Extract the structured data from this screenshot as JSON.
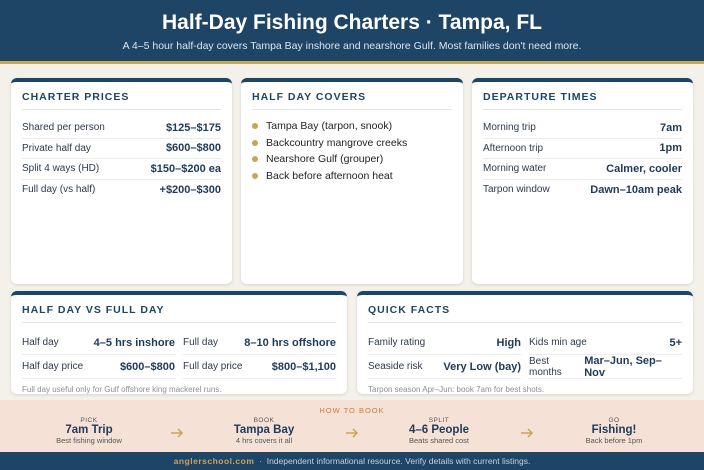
{
  "header": {
    "title": "Half-Day Fishing Charters · Tampa, FL",
    "subtitle": "A 4–5 hour half-day covers Tampa Bay inshore and nearshore Gulf. Most families don't need more."
  },
  "charter_prices": {
    "title": "CHARTER PRICES",
    "rows": [
      [
        "Shared per person",
        "$125–$175"
      ],
      [
        "Private half day",
        "$600–$800"
      ],
      [
        "Split 4 ways (HD)",
        "$150–$200 ea"
      ],
      [
        "Full day (vs half)",
        "+$200–$300"
      ]
    ]
  },
  "half_day_covers": {
    "title": "HALF DAY COVERS",
    "items": [
      "Tampa Bay (tarpon, snook)",
      "Backcountry mangrove creeks",
      "Nearshore Gulf (grouper)",
      "Back before afternoon heat"
    ]
  },
  "departure_times": {
    "title": "DEPARTURE TIMES",
    "rows": [
      [
        "Morning trip",
        "7am"
      ],
      [
        "Afternoon trip",
        "1pm"
      ],
      [
        "Morning water",
        "Calmer, cooler"
      ],
      [
        "Tarpon window",
        "Dawn–10am peak"
      ]
    ]
  },
  "half_vs_full": {
    "title": "HALF DAY VS FULL DAY",
    "cells": [
      [
        "Half day",
        "4–5 hrs inshore"
      ],
      [
        "Full day",
        "8–10 hrs offshore"
      ],
      [
        "Half day price",
        "$600–$800"
      ],
      [
        "Full day price",
        "$800–$1,100"
      ]
    ],
    "note": "Full day useful only for Gulf offshore king mackerel runs."
  },
  "quick_facts": {
    "title": "QUICK FACTS",
    "cells": [
      [
        "Family rating",
        "High"
      ],
      [
        "Kids min age",
        "5+"
      ],
      [
        "Seaside risk",
        "Very Low (bay)"
      ],
      [
        "Best months",
        "Mar–Jun, Sep–Nov"
      ]
    ],
    "note": "Tarpon season Apr–Jun: book 7am for best shots."
  },
  "how_to_book": {
    "title": "HOW TO BOOK",
    "steps": [
      {
        "label": "PICK",
        "title": "7am Trip",
        "sub": "Best fishing window"
      },
      {
        "label": "BOOK",
        "title": "Tampa Bay",
        "sub": "4 hrs covers it all"
      },
      {
        "label": "SPLIT",
        "title": "4–6 People",
        "sub": "Beats shared cost"
      },
      {
        "label": "GO",
        "title": "Fishing!",
        "sub": "Back before 1pm"
      }
    ]
  },
  "footer": {
    "site": "anglerschool.com",
    "separator": "·",
    "text": "Independent informational resource. Verify details with current listings."
  }
}
